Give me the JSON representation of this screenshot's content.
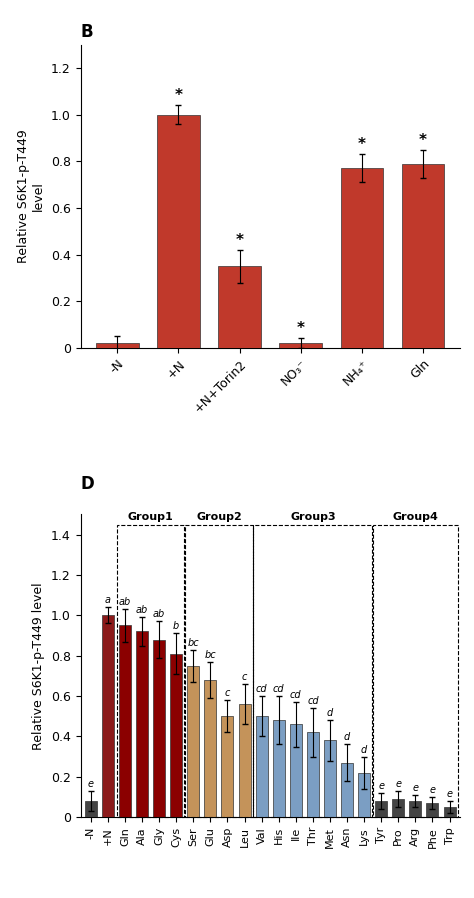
{
  "chart_data": [
    {
      "type": "bar",
      "title": "B",
      "categories": [
        "-N",
        "+N",
        "+N+Torin2",
        "NO₃⁻",
        "NH₄⁺",
        "Gln"
      ],
      "values": [
        0.02,
        1.0,
        0.35,
        0.02,
        0.77,
        0.79
      ],
      "errors": [
        0.03,
        0.04,
        0.07,
        0.02,
        0.06,
        0.06
      ],
      "color": "#C0392B",
      "y_label": "Relative S6K1-p-T449\nlevel",
      "ylim": [
        0,
        1.3
      ],
      "yticks": [
        0,
        0.2,
        0.4,
        0.6,
        0.8,
        {
          "value": 1.0,
          "label": "1.0"
        },
        1.2
      ],
      "annotations": [
        {
          "category": "+N",
          "text": "*"
        },
        {
          "category": "+N+Torin2",
          "text": "*"
        },
        {
          "category": "NO₃⁻",
          "text": "*"
        },
        {
          "category": "NH₄⁺",
          "text": "*"
        },
        {
          "category": "Gln",
          "text": "*"
        }
      ]
    },
    {
      "type": "bar",
      "title": "D",
      "categories": [
        "-N",
        "+N",
        "Gln",
        "Ala",
        "Gly",
        "Cys",
        "Ser",
        "Glu",
        "Asp",
        "Leu",
        "Val",
        "His",
        "Ile",
        "Thr",
        "Met",
        "Asn",
        "Lys",
        "Tyr",
        "Pro",
        "Arg",
        "Phe",
        "Trp"
      ],
      "values": [
        0.08,
        1.0,
        0.95,
        0.92,
        0.88,
        0.81,
        0.75,
        0.68,
        0.5,
        0.56,
        0.5,
        0.48,
        0.46,
        0.42,
        0.38,
        0.27,
        0.22,
        0.08,
        0.09,
        0.08,
        0.07,
        0.05
      ],
      "errors": [
        0.05,
        0.04,
        0.08,
        0.07,
        0.09,
        0.1,
        0.08,
        0.09,
        0.08,
        0.1,
        0.1,
        0.12,
        0.11,
        0.12,
        0.1,
        0.09,
        0.08,
        0.04,
        0.04,
        0.03,
        0.03,
        0.03
      ],
      "colors": [
        "#444444",
        "#8B1A1A",
        "#8B0000",
        "#8B0000",
        "#8B0000",
        "#8B0000",
        "#C4935A",
        "#C4935A",
        "#C4935A",
        "#C4935A",
        "#7B9EC3",
        "#7B9EC3",
        "#7B9EC3",
        "#7B9EC3",
        "#7B9EC3",
        "#7B9EC3",
        "#7B9EC3",
        "#444444",
        "#444444",
        "#444444",
        "#444444",
        "#444444"
      ],
      "y_label": "Relative S6K1-p-T449 level",
      "ylim": [
        0,
        1.5
      ],
      "yticks": [
        0,
        0.2,
        0.4,
        0.6,
        0.8,
        {
          "value": 1.0,
          "label": "1.0"
        },
        1.2,
        1.4
      ],
      "annotations": [
        {
          "category": "-N",
          "text": "e"
        },
        {
          "category": "+N",
          "text": "a"
        },
        {
          "category": "Gln",
          "text": "ab"
        },
        {
          "category": "Ala",
          "text": "ab"
        },
        {
          "category": "Gly",
          "text": "ab"
        },
        {
          "category": "Cys",
          "text": "b"
        },
        {
          "category": "Ser",
          "text": "bc"
        },
        {
          "category": "Glu",
          "text": "bc"
        },
        {
          "category": "Asp",
          "text": "c"
        },
        {
          "category": "Leu",
          "text": "c"
        },
        {
          "category": "Val",
          "text": "cd"
        },
        {
          "category": "His",
          "text": "cd"
        },
        {
          "category": "Ile",
          "text": "cd"
        },
        {
          "category": "Thr",
          "text": "cd"
        },
        {
          "category": "Met",
          "text": "d"
        },
        {
          "category": "Asn",
          "text": "d"
        },
        {
          "category": "Lys",
          "text": "d"
        },
        {
          "category": "Tyr",
          "text": "e"
        },
        {
          "category": "Pro",
          "text": "e"
        },
        {
          "category": "Arg",
          "text": "e"
        },
        {
          "category": "Phe",
          "text": "e"
        },
        {
          "category": "Trp",
          "text": "e"
        }
      ],
      "groups": [
        {
          "name": "Group1",
          "first": "Gln",
          "last": "Cys"
        },
        {
          "name": "Group2",
          "first": "Ser",
          "last": "Leu"
        },
        {
          "name": "Group3",
          "first": "Val",
          "last": "Lys"
        },
        {
          "name": "Group4",
          "first": "Tyr",
          "last": "Trp"
        }
      ]
    }
  ]
}
